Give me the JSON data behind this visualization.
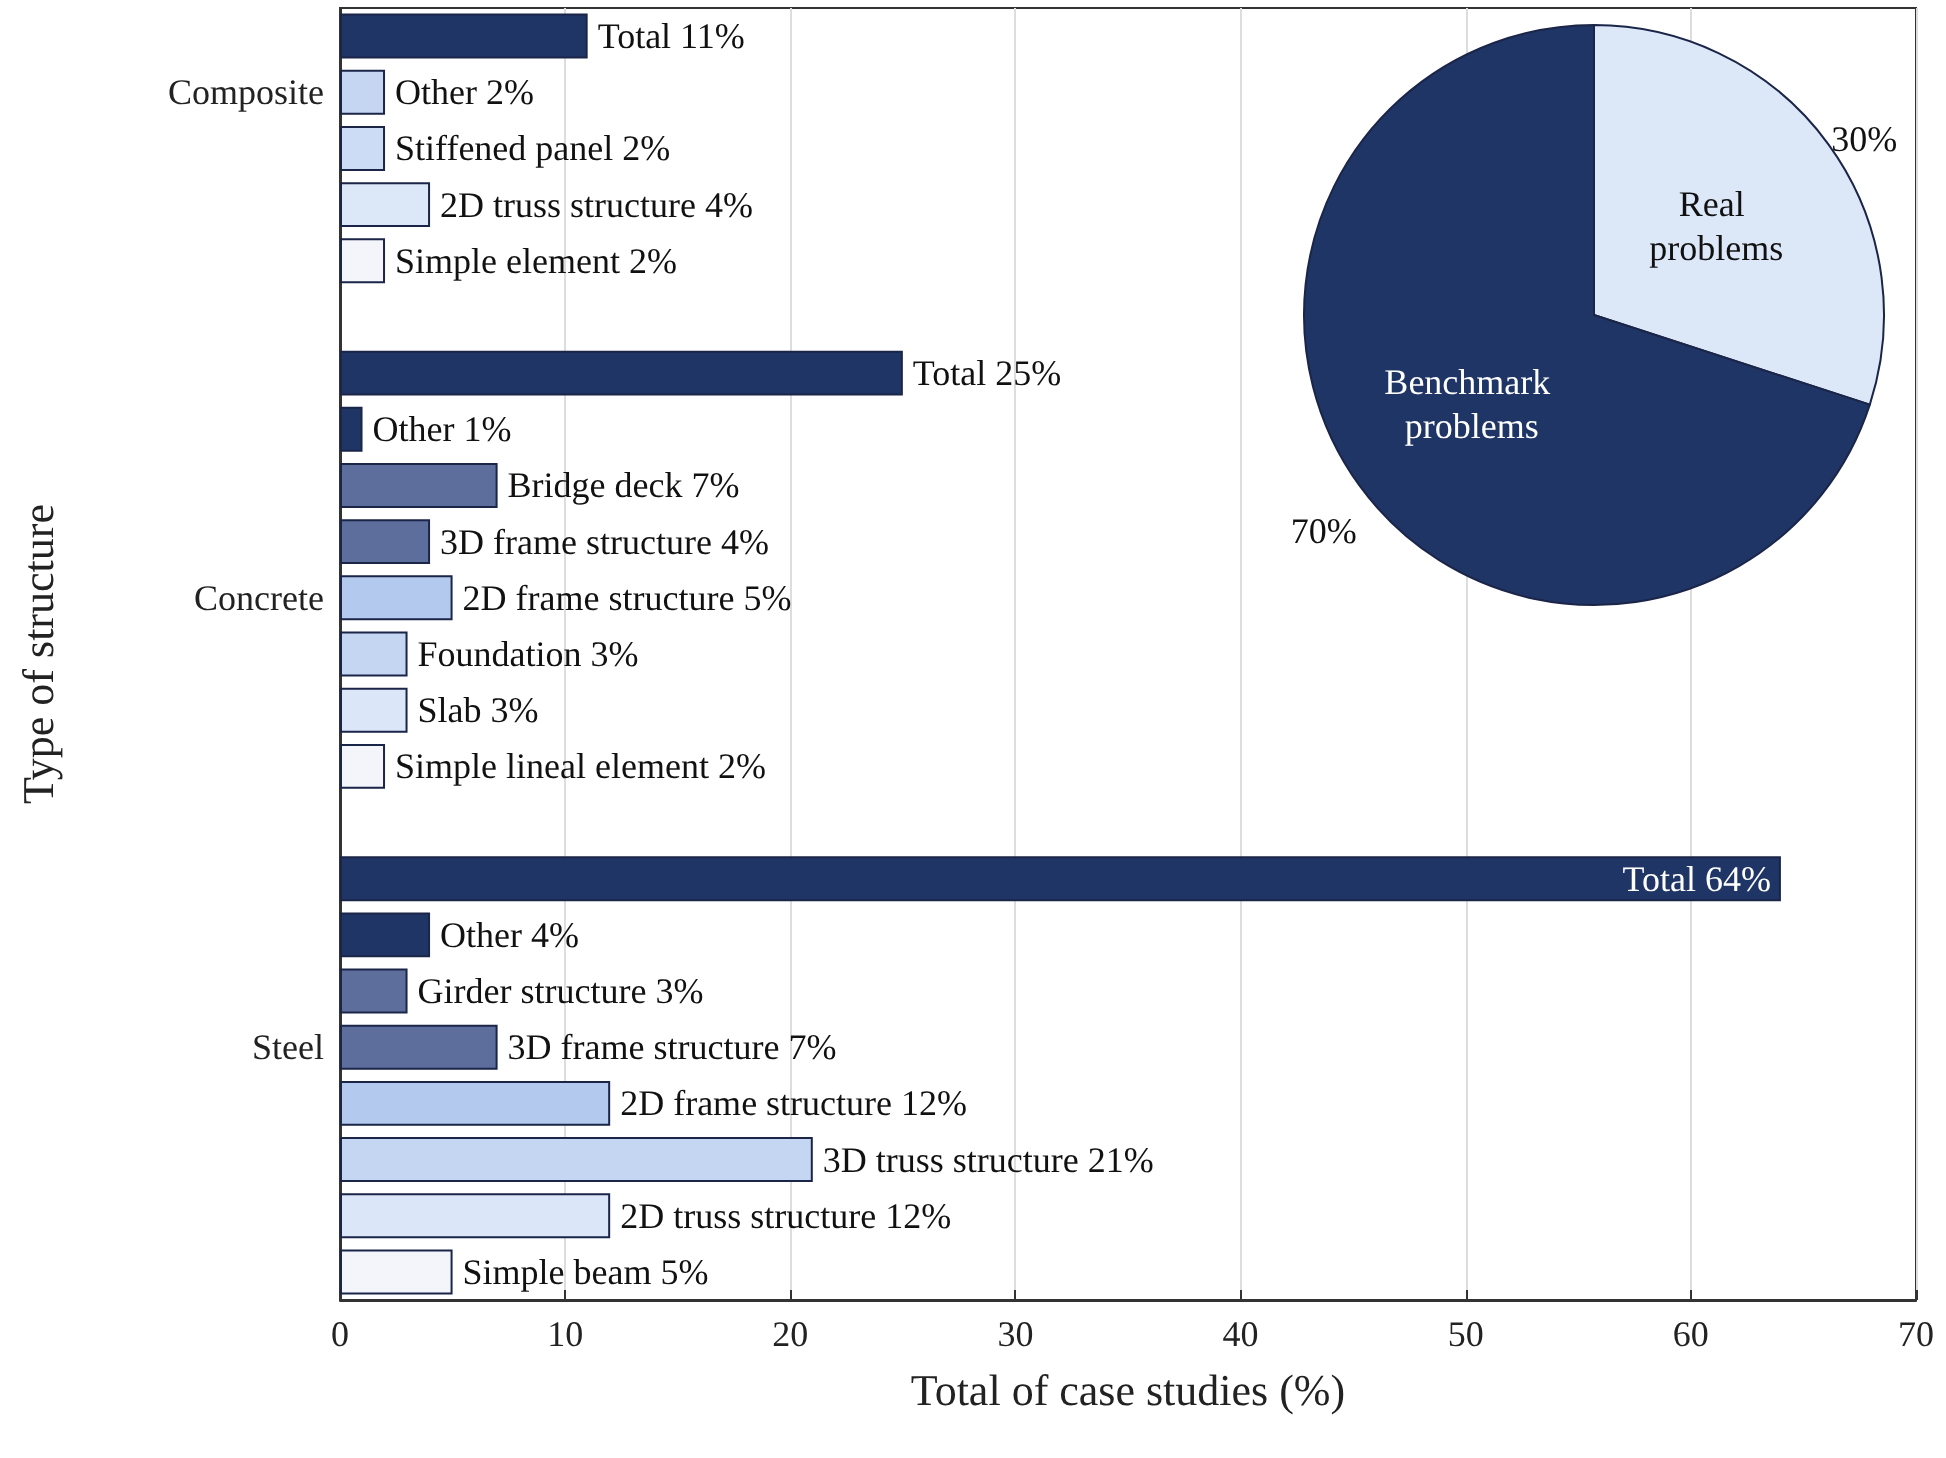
{
  "chart_data": [
    {
      "type": "bar",
      "orientation": "horizontal",
      "categories": [
        null,
        "Composite",
        null,
        null,
        null,
        null,
        null,
        null,
        null,
        null,
        "Concrete",
        null,
        null,
        null,
        null,
        null,
        null,
        null,
        "Steel",
        null,
        null,
        null,
        null
      ],
      "values": [
        11,
        2,
        2,
        4,
        2,
        null,
        25,
        1,
        7,
        4,
        5,
        3,
        3,
        2,
        null,
        64,
        4,
        3,
        7,
        12,
        21,
        12,
        5
      ],
      "value_labels": [
        "Total 11%",
        "Other 2%",
        "Stiffened panel 2%",
        "2D truss structure 4%",
        "Simple element 2%",
        null,
        "Total 25%",
        "Other 1%",
        "Bridge deck 7%",
        "3D frame structure 4%",
        "2D frame structure 5%",
        "Foundation 3%",
        "Slab 3%",
        "Simple lineal element 2%",
        null,
        "Total 64%",
        "Other 4%",
        "Girder structure 3%",
        "3D frame structure 7%",
        "2D frame structure 12%",
        "3D truss structure 21%",
        "2D truss structure 12%",
        "Simple beam 5%"
      ],
      "colors": [
        "#1f3566",
        "#c5d6f3",
        "#cddcf5",
        "#dce7f8",
        "#f3f5fa",
        null,
        "#1f3566",
        "#1f3566",
        "#5d6e9c",
        "#5d6e9c",
        "#b3c9ee",
        "#c5d6f3",
        "#dbe6f8",
        "#f3f5fb",
        null,
        "#1f3566",
        "#1f3566",
        "#5d6e9c",
        "#5d6e9c",
        "#b3c9ee",
        "#c5d6f3",
        "#dbe6f8",
        "#f3f5fb"
      ],
      "xlim": [
        0,
        70
      ],
      "xticks": [
        0,
        10,
        20,
        30,
        40,
        50,
        60,
        70
      ],
      "xlabel": "Total of case studies (%)",
      "ylabel": "Type of structure",
      "grid": "x"
    },
    {
      "type": "pie",
      "categories": [
        "Real problems",
        "Benchmark problems"
      ],
      "values": [
        30,
        70
      ],
      "colors": [
        "#dce7f8",
        "#1f3566"
      ],
      "value_labels": [
        "30%",
        "70%"
      ]
    }
  ]
}
